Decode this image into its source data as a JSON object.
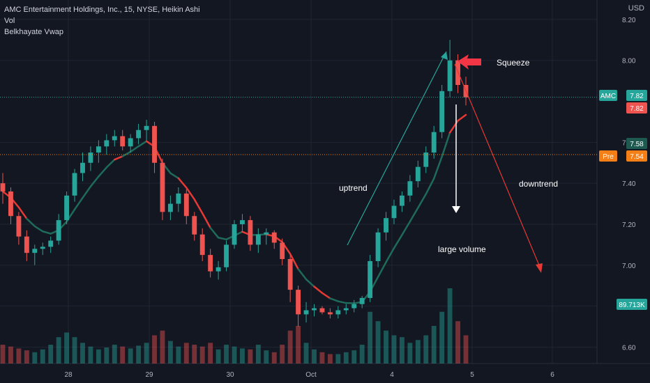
{
  "legend": {
    "symbol_line": "AMC Entertainment Holdings, Inc., 15, NYSE, Heikin Ashi",
    "volume": "Vol",
    "indicator": "Belkhayate Vwap"
  },
  "axis": {
    "currency": "USD"
  },
  "chart_data": {
    "type": "candlestick",
    "y_ticks": [
      "8.20",
      "8.00",
      "7.60",
      "7.40",
      "7.20",
      "7.00",
      "6.80",
      "6.60"
    ],
    "y_range": [
      6.52,
      8.22
    ],
    "x_ticks": [
      "28",
      "29",
      "30",
      "Oct",
      "4",
      "5",
      "6"
    ],
    "price_labels": [
      {
        "tag": "AMC",
        "value": "7.82",
        "tag_color": "#26a69a",
        "value_color": "#26a69a"
      },
      {
        "value": "7.82",
        "value_color": "#ef5350"
      },
      {
        "value": "7.58",
        "value_color": "#1e5a50"
      },
      {
        "tag": "Pre",
        "value": "7.54",
        "tag_color": "#f57f17",
        "value_color": "#f57f17"
      },
      {
        "value": "89.713K",
        "value_color": "#26a69a"
      }
    ],
    "last_price": 7.82,
    "premarket_price": 7.54,
    "volume_label": "89.713K",
    "candles": [
      [
        7.4,
        7.45,
        7.3,
        7.36
      ],
      [
        7.36,
        7.38,
        7.2,
        7.24
      ],
      [
        7.24,
        7.26,
        7.1,
        7.14
      ],
      [
        7.14,
        7.17,
        7.02,
        7.06
      ],
      [
        7.06,
        7.1,
        7.0,
        7.08
      ],
      [
        7.08,
        7.11,
        7.05,
        7.09
      ],
      [
        7.09,
        7.14,
        7.06,
        7.12
      ],
      [
        7.12,
        7.25,
        7.1,
        7.22
      ],
      [
        7.22,
        7.36,
        7.2,
        7.34
      ],
      [
        7.34,
        7.47,
        7.31,
        7.45
      ],
      [
        7.45,
        7.55,
        7.41,
        7.5
      ],
      [
        7.5,
        7.58,
        7.46,
        7.55
      ],
      [
        7.55,
        7.61,
        7.5,
        7.58
      ],
      [
        7.58,
        7.64,
        7.54,
        7.61
      ],
      [
        7.61,
        7.66,
        7.58,
        7.63
      ],
      [
        7.63,
        7.66,
        7.56,
        7.58
      ],
      [
        7.58,
        7.64,
        7.55,
        7.62
      ],
      [
        7.62,
        7.69,
        7.59,
        7.66
      ],
      [
        7.66,
        7.71,
        7.61,
        7.68
      ],
      [
        7.68,
        7.7,
        7.45,
        7.5
      ],
      [
        7.5,
        7.52,
        7.22,
        7.26
      ],
      [
        7.26,
        7.34,
        7.22,
        7.3
      ],
      [
        7.3,
        7.38,
        7.26,
        7.35
      ],
      [
        7.35,
        7.37,
        7.2,
        7.24
      ],
      [
        7.24,
        7.26,
        7.12,
        7.15
      ],
      [
        7.15,
        7.18,
        7.02,
        7.05
      ],
      [
        7.05,
        7.08,
        6.94,
        6.97
      ],
      [
        6.97,
        7.02,
        6.93,
        6.99
      ],
      [
        6.99,
        7.12,
        6.97,
        7.1
      ],
      [
        7.1,
        7.22,
        7.08,
        7.2
      ],
      [
        7.2,
        7.25,
        7.16,
        7.22
      ],
      [
        7.22,
        7.24,
        7.07,
        7.1
      ],
      [
        7.1,
        7.18,
        7.06,
        7.15
      ],
      [
        7.15,
        7.18,
        7.1,
        7.16
      ],
      [
        7.16,
        7.17,
        7.08,
        7.11
      ],
      [
        7.11,
        7.13,
        7.0,
        7.03
      ],
      [
        7.03,
        7.05,
        6.82,
        6.88
      ],
      [
        6.88,
        6.9,
        6.7,
        6.76
      ],
      [
        6.76,
        6.82,
        6.72,
        6.78
      ],
      [
        6.78,
        6.81,
        6.75,
        6.79
      ],
      [
        6.79,
        6.8,
        6.76,
        6.77
      ],
      [
        6.77,
        6.79,
        6.74,
        6.76
      ],
      [
        6.76,
        6.8,
        6.74,
        6.78
      ],
      [
        6.78,
        6.81,
        6.76,
        6.79
      ],
      [
        6.79,
        6.83,
        6.77,
        6.81
      ],
      [
        6.81,
        6.85,
        6.79,
        6.84
      ],
      [
        6.84,
        7.05,
        6.82,
        7.02
      ],
      [
        7.02,
        7.18,
        6.99,
        7.16
      ],
      [
        7.16,
        7.26,
        7.12,
        7.23
      ],
      [
        7.23,
        7.32,
        7.2,
        7.29
      ],
      [
        7.29,
        7.36,
        7.26,
        7.34
      ],
      [
        7.34,
        7.44,
        7.31,
        7.41
      ],
      [
        7.41,
        7.51,
        7.38,
        7.48
      ],
      [
        7.48,
        7.58,
        7.45,
        7.55
      ],
      [
        7.55,
        7.68,
        7.52,
        7.65
      ],
      [
        7.65,
        7.88,
        7.62,
        7.85
      ],
      [
        7.85,
        8.1,
        7.82,
        8.0
      ],
      [
        8.0,
        8.03,
        7.84,
        7.88
      ],
      [
        7.88,
        7.92,
        7.78,
        7.82
      ]
    ],
    "volumes": [
      0.2,
      0.18,
      0.16,
      0.14,
      0.12,
      0.15,
      0.2,
      0.28,
      0.33,
      0.28,
      0.22,
      0.18,
      0.15,
      0.17,
      0.2,
      0.18,
      0.16,
      0.19,
      0.22,
      0.3,
      0.35,
      0.24,
      0.18,
      0.22,
      0.2,
      0.18,
      0.22,
      0.15,
      0.2,
      0.18,
      0.16,
      0.15,
      0.2,
      0.14,
      0.12,
      0.2,
      0.35,
      0.4,
      0.22,
      0.15,
      0.12,
      0.1,
      0.1,
      0.12,
      0.14,
      0.2,
      0.55,
      0.45,
      0.35,
      0.3,
      0.28,
      0.22,
      0.25,
      0.3,
      0.4,
      0.55,
      0.8,
      0.45,
      0.3
    ],
    "annotations": [
      "Squeeze",
      "uptrend",
      "downtrend",
      "large volume"
    ]
  }
}
